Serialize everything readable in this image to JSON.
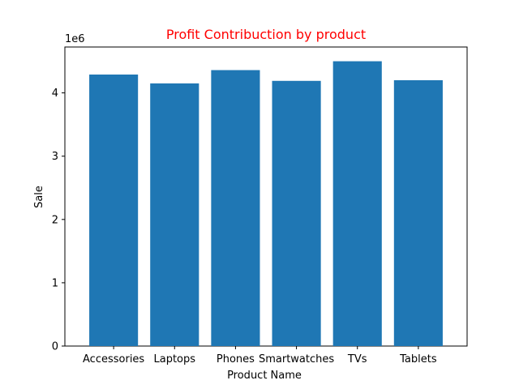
{
  "chart_data": {
    "type": "bar",
    "title": "Profit Contribuction by product",
    "title_color": "#ff0000",
    "xlabel": "Product Name",
    "ylabel": "Sale",
    "y_offset_label": "1e6",
    "y_scale": 1000000,
    "bar_color": "#1f77b4",
    "categories": [
      "Accessories",
      "Laptops",
      "Phones",
      "Smartwatches",
      "TVs",
      "Tablets"
    ],
    "values": [
      4290000,
      4150000,
      4360000,
      4190000,
      4500000,
      4200000
    ],
    "ylim": [
      0,
      4725000
    ],
    "yticks": [
      0,
      1000000,
      2000000,
      3000000,
      4000000
    ],
    "ytick_labels": [
      "0",
      "1",
      "2",
      "3",
      "4"
    ],
    "grid": false,
    "legend": "none"
  }
}
